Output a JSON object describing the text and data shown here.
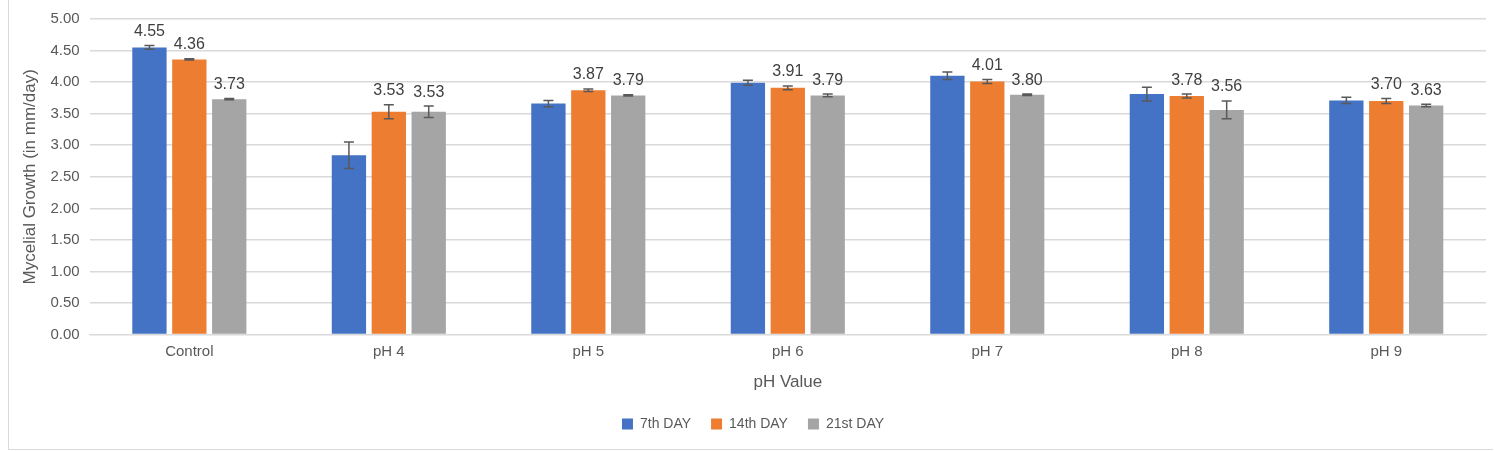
{
  "chart_data": {
    "type": "bar",
    "xlabel": "pH Value",
    "ylabel": "Mycelial Growth (in mm/day)",
    "categories": [
      "Control",
      "pH 4",
      "pH 5",
      "pH 6",
      "pH 7",
      "pH 8",
      "pH 9"
    ],
    "series": [
      {
        "name": "7th DAY",
        "color": "#4472c4",
        "values": [
          4.55,
          2.84,
          3.66,
          3.99,
          4.1,
          3.81,
          3.71
        ],
        "errors": [
          0.03,
          0.21,
          0.05,
          0.04,
          0.06,
          0.11,
          0.05
        ],
        "value_labels": [
          "4.55",
          null,
          null,
          null,
          null,
          null,
          null
        ]
      },
      {
        "name": "14th DAY",
        "color": "#ed7d31",
        "values": [
          4.36,
          3.53,
          3.87,
          3.91,
          4.01,
          3.78,
          3.7
        ],
        "errors": [
          0.01,
          0.11,
          0.02,
          0.03,
          0.03,
          0.03,
          0.04
        ],
        "value_labels": [
          "4.36",
          "3.53",
          "3.87",
          "3.91",
          "4.01",
          "3.78",
          "3.70"
        ]
      },
      {
        "name": "21st DAY",
        "color": "#a5a5a5",
        "values": [
          3.73,
          3.53,
          3.79,
          3.79,
          3.8,
          3.56,
          3.63
        ],
        "errors": [
          0.01,
          0.09,
          0.01,
          0.02,
          0.01,
          0.14,
          0.02
        ],
        "value_labels": [
          "3.73",
          "3.53",
          "3.79",
          "3.79",
          "3.80",
          "3.56",
          "3.63"
        ]
      }
    ],
    "ylim": [
      0,
      5
    ],
    "yticks": [
      {
        "value": 0,
        "label": "0.00"
      },
      {
        "value": 0.5,
        "label": "0.50"
      },
      {
        "value": 1,
        "label": "1.00"
      },
      {
        "value": 1.5,
        "label": "1.50"
      },
      {
        "value": 2,
        "label": "2.00"
      },
      {
        "value": 2.5,
        "label": "2.50"
      },
      {
        "value": 3,
        "label": "3.00"
      },
      {
        "value": 3.5,
        "label": "3.50"
      },
      {
        "value": 4,
        "label": "4.00"
      },
      {
        "value": 4.5,
        "label": "4.50"
      },
      {
        "value": 5,
        "label": "5.00"
      }
    ],
    "grid": "y",
    "legend": "bottom"
  }
}
